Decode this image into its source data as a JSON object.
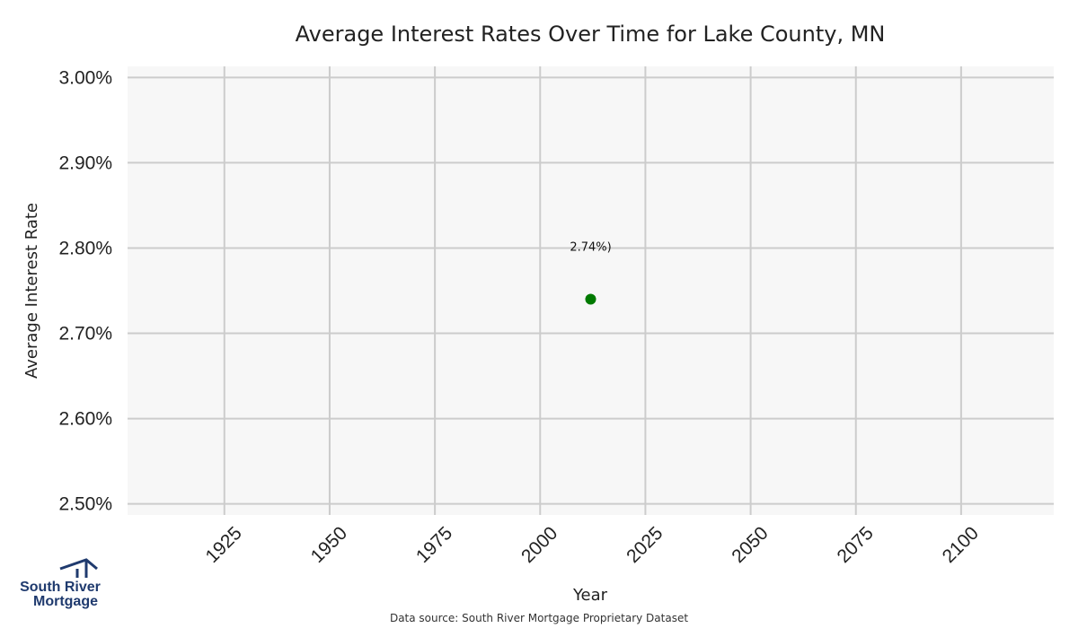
{
  "chart_data": {
    "type": "scatter",
    "title": "Average Interest Rates Over Time for Lake County, MN",
    "xlabel": "Year",
    "ylabel": "Average Interest Rate",
    "xlim": [
      1902,
      2122
    ],
    "ylim": [
      2.487,
      3.013
    ],
    "x_ticks": [
      1925,
      1950,
      1975,
      2000,
      2025,
      2050,
      2075,
      2100
    ],
    "y_ticks": [
      2.5,
      2.6,
      2.7,
      2.8,
      2.9,
      3.0
    ],
    "y_tick_labels": [
      "2.50%",
      "2.60%",
      "2.70%",
      "2.80%",
      "2.90%",
      "3.00%"
    ],
    "grid": true,
    "points": [
      {
        "x": 2012,
        "y": 2.74,
        "label": "2.74%)"
      }
    ],
    "colors": {
      "point": "#007a00",
      "plot_background": "#f7f7f7",
      "grid": "#cccccc"
    }
  },
  "footer": {
    "source": "Data source: South River Mortgage Proprietary Dataset"
  },
  "logo": {
    "line1": "South River",
    "line2": "Mortgage",
    "primary_color": "#1f3a6e",
    "icon": "house-roof-icon"
  }
}
